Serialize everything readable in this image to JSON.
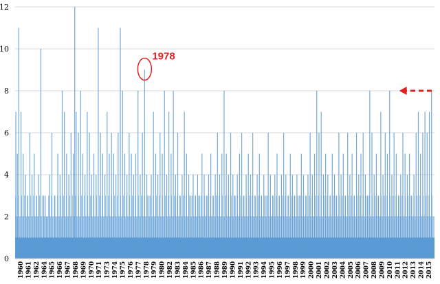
{
  "chart_data": {
    "type": "bar",
    "title": "",
    "xlabel": "",
    "ylabel": "",
    "ylim": [
      0,
      12
    ],
    "yticks": [
      0,
      2,
      4,
      6,
      8,
      10,
      12
    ],
    "xlim": [
      1960,
      2017
    ],
    "xticks": [
      "1960",
      "1961",
      "1962",
      "1964",
      "1965",
      "1966",
      "1967",
      "1968",
      "1969",
      "1970",
      "1971",
      "1973",
      "1974",
      "1975",
      "1976",
      "1977",
      "1978",
      "1979",
      "1980",
      "1982",
      "1983",
      "1984",
      "1985",
      "1986",
      "1987",
      "1988",
      "1989",
      "1990",
      "1991",
      "1992",
      "1993",
      "1994",
      "1995",
      "1996",
      "1997",
      "1998",
      "1999",
      "2000",
      "2001",
      "2002",
      "2003",
      "2004",
      "2005",
      "2006",
      "2007",
      "2008",
      "2009",
      "2010",
      "2011",
      "2012",
      "2013",
      "2014",
      "2015"
    ],
    "grid": true,
    "bar_color": "#5b9bd5",
    "baseline_value": 1,
    "series": [
      {
        "values": [
          [
            1960.1,
            7
          ],
          [
            1960.3,
            5
          ],
          [
            1960.5,
            11
          ],
          [
            1960.8,
            7
          ],
          [
            1961.1,
            5
          ],
          [
            1961.4,
            4
          ],
          [
            1961.7,
            3
          ],
          [
            1962.0,
            6
          ],
          [
            1962.3,
            4
          ],
          [
            1962.6,
            5
          ],
          [
            1962.9,
            3
          ],
          [
            1963.2,
            4
          ],
          [
            1963.5,
            10
          ],
          [
            1963.9,
            3
          ],
          [
            1964.3,
            2
          ],
          [
            1964.7,
            4
          ],
          [
            1965.0,
            6
          ],
          [
            1965.4,
            3
          ],
          [
            1965.8,
            5
          ],
          [
            1966.1,
            4
          ],
          [
            1966.4,
            8
          ],
          [
            1966.7,
            7
          ],
          [
            1967.0,
            5
          ],
          [
            1967.3,
            4
          ],
          [
            1967.6,
            6
          ],
          [
            1967.9,
            5
          ],
          [
            1968.1,
            12
          ],
          [
            1968.3,
            7
          ],
          [
            1968.6,
            6
          ],
          [
            1968.9,
            8
          ],
          [
            1969.2,
            5
          ],
          [
            1969.5,
            4
          ],
          [
            1969.8,
            7
          ],
          [
            1970.1,
            6
          ],
          [
            1970.4,
            4
          ],
          [
            1970.7,
            5
          ],
          [
            1971.0,
            4
          ],
          [
            1971.3,
            11
          ],
          [
            1971.6,
            6
          ],
          [
            1971.9,
            5
          ],
          [
            1972.2,
            4
          ],
          [
            1972.5,
            7
          ],
          [
            1972.8,
            5
          ],
          [
            1973.1,
            6
          ],
          [
            1973.4,
            5
          ],
          [
            1973.7,
            4
          ],
          [
            1974.0,
            6
          ],
          [
            1974.3,
            11
          ],
          [
            1974.6,
            8
          ],
          [
            1974.9,
            5
          ],
          [
            1975.2,
            4
          ],
          [
            1975.5,
            6
          ],
          [
            1975.8,
            5
          ],
          [
            1976.1,
            4
          ],
          [
            1976.4,
            5
          ],
          [
            1976.7,
            8
          ],
          [
            1977.0,
            4
          ],
          [
            1977.3,
            6
          ],
          [
            1977.6,
            9
          ],
          [
            1977.9,
            4
          ],
          [
            1978.2,
            3
          ],
          [
            1978.5,
            4
          ],
          [
            1978.8,
            7
          ],
          [
            1979.1,
            5
          ],
          [
            1979.4,
            4
          ],
          [
            1979.7,
            6
          ],
          [
            1980.0,
            5
          ],
          [
            1980.3,
            8
          ],
          [
            1980.6,
            4
          ],
          [
            1980.9,
            7
          ],
          [
            1981.2,
            5
          ],
          [
            1981.5,
            8
          ],
          [
            1981.8,
            4
          ],
          [
            1982.1,
            6
          ],
          [
            1982.4,
            3
          ],
          [
            1982.7,
            4
          ],
          [
            1983.0,
            7
          ],
          [
            1983.3,
            5
          ],
          [
            1983.6,
            4
          ],
          [
            1983.9,
            3
          ],
          [
            1984.2,
            4
          ],
          [
            1984.5,
            3
          ],
          [
            1984.8,
            4
          ],
          [
            1985.1,
            3
          ],
          [
            1985.4,
            5
          ],
          [
            1985.7,
            4
          ],
          [
            1986.0,
            3
          ],
          [
            1986.3,
            4
          ],
          [
            1986.6,
            5
          ],
          [
            1986.9,
            3
          ],
          [
            1987.2,
            4
          ],
          [
            1987.5,
            6
          ],
          [
            1987.8,
            4
          ],
          [
            1988.1,
            5
          ],
          [
            1988.4,
            8
          ],
          [
            1988.7,
            5
          ],
          [
            1989.0,
            4
          ],
          [
            1989.3,
            6
          ],
          [
            1989.6,
            4
          ],
          [
            1989.9,
            3
          ],
          [
            1990.2,
            4
          ],
          [
            1990.5,
            5
          ],
          [
            1990.8,
            6
          ],
          [
            1991.1,
            3
          ],
          [
            1991.4,
            4
          ],
          [
            1991.7,
            5
          ],
          [
            1992.0,
            4
          ],
          [
            1992.3,
            6
          ],
          [
            1992.6,
            3
          ],
          [
            1992.9,
            4
          ],
          [
            1993.2,
            5
          ],
          [
            1993.5,
            3
          ],
          [
            1993.8,
            4
          ],
          [
            1994.1,
            3
          ],
          [
            1994.4,
            6
          ],
          [
            1994.7,
            4
          ],
          [
            1995.0,
            3
          ],
          [
            1995.3,
            4
          ],
          [
            1995.6,
            5
          ],
          [
            1995.9,
            3
          ],
          [
            1996.2,
            4
          ],
          [
            1996.5,
            6
          ],
          [
            1996.8,
            4
          ],
          [
            1997.1,
            3
          ],
          [
            1997.4,
            5
          ],
          [
            1997.7,
            4
          ],
          [
            1998.0,
            3
          ],
          [
            1998.3,
            4
          ],
          [
            1998.6,
            3
          ],
          [
            1998.9,
            5
          ],
          [
            1999.2,
            4
          ],
          [
            1999.5,
            3
          ],
          [
            1999.8,
            4
          ],
          [
            2000.1,
            6
          ],
          [
            2000.4,
            4
          ],
          [
            2000.7,
            5
          ],
          [
            2001.0,
            8
          ],
          [
            2001.3,
            6
          ],
          [
            2001.6,
            7
          ],
          [
            2001.9,
            4
          ],
          [
            2002.2,
            5
          ],
          [
            2002.5,
            4
          ],
          [
            2002.8,
            3
          ],
          [
            2003.1,
            5
          ],
          [
            2003.4,
            4
          ],
          [
            2003.7,
            3
          ],
          [
            2004.0,
            6
          ],
          [
            2004.3,
            4
          ],
          [
            2004.6,
            5
          ],
          [
            2004.9,
            3
          ],
          [
            2005.2,
            6
          ],
          [
            2005.5,
            4
          ],
          [
            2005.8,
            5
          ],
          [
            2006.1,
            3
          ],
          [
            2006.4,
            6
          ],
          [
            2006.7,
            4
          ],
          [
            2007.0,
            5
          ],
          [
            2007.3,
            6
          ],
          [
            2007.6,
            4
          ],
          [
            2007.9,
            3
          ],
          [
            2008.2,
            8
          ],
          [
            2008.5,
            6
          ],
          [
            2008.8,
            4
          ],
          [
            2009.1,
            5
          ],
          [
            2009.4,
            3
          ],
          [
            2009.7,
            7
          ],
          [
            2010.0,
            4
          ],
          [
            2010.3,
            6
          ],
          [
            2010.6,
            5
          ],
          [
            2010.9,
            8
          ],
          [
            2011.2,
            4
          ],
          [
            2011.5,
            6
          ],
          [
            2011.8,
            5
          ],
          [
            2012.1,
            3
          ],
          [
            2012.4,
            4
          ],
          [
            2012.7,
            6
          ],
          [
            2013.0,
            5
          ],
          [
            2013.3,
            4
          ],
          [
            2013.6,
            5
          ],
          [
            2013.9,
            3
          ],
          [
            2014.2,
            4
          ],
          [
            2014.5,
            6
          ],
          [
            2014.8,
            7
          ],
          [
            2015.1,
            5
          ],
          [
            2015.4,
            6
          ],
          [
            2015.7,
            7
          ],
          [
            2016.0,
            6
          ],
          [
            2016.3,
            7
          ],
          [
            2016.6,
            8
          ]
        ]
      }
    ],
    "annotations": [
      {
        "text": "1978",
        "x": 1977.6,
        "y": 9,
        "color": "#e02020"
      },
      {
        "text": "",
        "x": 2012.2,
        "y": 8,
        "color": "#e02020",
        "kind": "dashed-arrow"
      }
    ]
  }
}
